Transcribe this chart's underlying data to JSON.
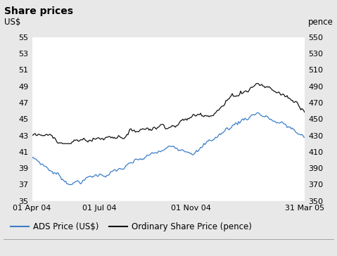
{
  "title": "Share prices",
  "left_label": "US$",
  "right_label": "pence",
  "left_ylim": [
    35,
    55
  ],
  "right_ylim": [
    350,
    550
  ],
  "left_yticks": [
    35,
    37,
    39,
    41,
    43,
    45,
    47,
    49,
    51,
    53,
    55
  ],
  "right_yticks": [
    350,
    370,
    390,
    410,
    430,
    450,
    470,
    490,
    510,
    530,
    550
  ],
  "xtick_labels": [
    "01 Apr 04",
    "01 Jul 04",
    "01 Nov 04",
    "31 Mar 05"
  ],
  "xtick_pos": [
    0.0,
    0.247,
    0.583,
    1.0
  ],
  "ads_color": "#3a7dc9",
  "ordinary_color": "#111111",
  "background_color": "#e8e8e8",
  "plot_bg_color": "#ffffff",
  "title_fontsize": 10,
  "label_fontsize": 8.5,
  "tick_fontsize": 8,
  "legend_fontsize": 8.5
}
